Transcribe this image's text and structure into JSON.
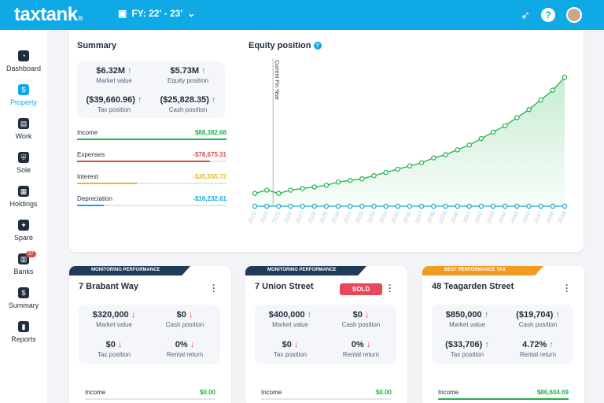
{
  "topbar": {
    "logo": "taxtank",
    "logo_mark": "®",
    "fy_label": "FY: 22' - 23'"
  },
  "sidebar": {
    "items": [
      {
        "label": "Dashboard"
      },
      {
        "label": "Property"
      },
      {
        "label": "Work"
      },
      {
        "label": "Sole"
      },
      {
        "label": "Holdings"
      },
      {
        "label": "Spare"
      },
      {
        "label": "Banks",
        "badge": "37"
      },
      {
        "label": "Summary"
      },
      {
        "label": "Reports"
      }
    ]
  },
  "summary": {
    "title": "Summary",
    "stats": [
      {
        "value": "$6.32M",
        "label": "Market value",
        "trend": "up"
      },
      {
        "value": "$5.73M",
        "label": "Equity position",
        "trend": "up"
      },
      {
        "value": "($39,660.96)",
        "label": "Tax position",
        "trend": "up"
      },
      {
        "value": "($25,828.35)",
        "label": "Cash position",
        "trend": "up"
      }
    ],
    "lines": [
      {
        "label": "Income",
        "value": "$88,382.68",
        "color": "#22b24c",
        "fill": 1.0
      },
      {
        "label": "Expenses",
        "value": "-$78,675.31",
        "color": "#e04a4a",
        "fill": 0.89
      },
      {
        "label": "Interest",
        "value": "-$35,555.72",
        "color": "#e8b91e",
        "fill": 0.4
      },
      {
        "label": "Depreciation",
        "value": "-$16,232.61",
        "color": "#0fa9e6",
        "fill": 0.18
      }
    ]
  },
  "equity": {
    "title": "Equity position",
    "help_icon": "?",
    "marker": "Current Fin Year"
  },
  "chart_data": {
    "type": "line",
    "x": [
      "2023",
      "2024",
      "2025",
      "2026",
      "2027",
      "2028",
      "2029",
      "2030",
      "2031",
      "2032",
      "2033",
      "2034",
      "2035",
      "2036",
      "2037",
      "2038",
      "2039",
      "2040",
      "2041",
      "2042",
      "2043",
      "2044",
      "2045",
      "2046",
      "2047",
      "2048",
      "2049"
    ],
    "series": [
      {
        "color": "#22b24c",
        "values": [
          0.08,
          0.1,
          0.08,
          0.1,
          0.11,
          0.12,
          0.13,
          0.15,
          0.16,
          0.17,
          0.19,
          0.21,
          0.23,
          0.25,
          0.27,
          0.3,
          0.32,
          0.35,
          0.38,
          0.42,
          0.46,
          0.5,
          0.55,
          0.6,
          0.66,
          0.72,
          0.8
        ]
      },
      {
        "color": "#1ba6c8",
        "values": [
          0.0,
          0.0,
          0.0,
          0.0,
          0.0,
          0.0,
          0.0,
          0.0,
          0.0,
          0.0,
          0.0,
          0.0,
          0.0,
          0.0,
          0.0,
          0.0,
          0.0,
          0.0,
          0.0,
          0.0,
          0.0,
          0.0,
          0.0,
          0.0,
          0.0,
          0.0,
          0.0
        ]
      }
    ],
    "marker_x": "2024",
    "ylim": [
      0,
      0.85
    ]
  },
  "properties": [
    {
      "tag": "MONITORING PERFORMANCE",
      "tag_color": "#1f3b57",
      "name": "7 Brabant Way",
      "sold": "",
      "stats": [
        {
          "value": "$320,000",
          "label": "Market value",
          "trend": "down"
        },
        {
          "value": "$0",
          "label": "Cash position",
          "trend": "down"
        },
        {
          "value": "$0",
          "label": "Tax position",
          "trend": "down"
        },
        {
          "value": "0%",
          "label": "Rental return",
          "trend": "down"
        }
      ],
      "income_label": "Income",
      "income_value": "$0.00"
    },
    {
      "tag": "MONITORING PERFORMANCE",
      "tag_color": "#1f3b57",
      "name": "7 Union Street",
      "sold": "SOLD",
      "stats": [
        {
          "value": "$400,000",
          "label": "Market value",
          "trend": "up"
        },
        {
          "value": "$0",
          "label": "Cash position",
          "trend": "down"
        },
        {
          "value": "$0",
          "label": "Tax position",
          "trend": "down"
        },
        {
          "value": "0%",
          "label": "Rental return",
          "trend": "down"
        }
      ],
      "income_label": "Income",
      "income_value": "$0.00"
    },
    {
      "tag": "BEST PERFORMANCE TAX",
      "tag_color": "#f19a24",
      "name": "48 Teagarden Street",
      "sold": "",
      "stats": [
        {
          "value": "$850,000",
          "label": "Market value",
          "trend": "up"
        },
        {
          "value": "($19,704)",
          "label": "Cash position",
          "trend": "up"
        },
        {
          "value": "($33,706)",
          "label": "Tax position",
          "trend": "up"
        },
        {
          "value": "4.72%",
          "label": "Rental return",
          "trend": "up"
        }
      ],
      "income_label": "Income",
      "income_value": "$86,604.69"
    }
  ]
}
